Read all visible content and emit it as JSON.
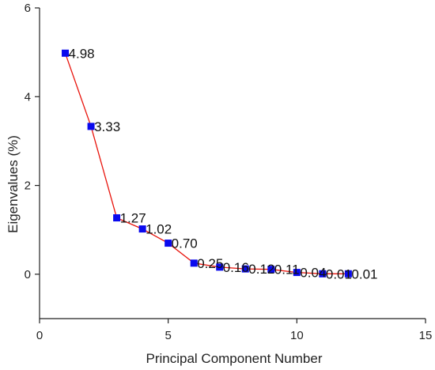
{
  "chart_data": {
    "type": "line",
    "title": "",
    "xlabel": "Principal Component Number",
    "ylabel": "Eigenvalues (%)",
    "xlim": [
      0,
      15
    ],
    "ylim": [
      -1,
      6
    ],
    "x_ticks": [
      0,
      5,
      10,
      15
    ],
    "y_ticks": [
      0,
      2,
      4,
      6
    ],
    "grid": false,
    "legend": "none",
    "colors": {
      "line": "#e8140c",
      "marker": "#0a0aee",
      "axis": "#222222"
    },
    "series": [
      {
        "x": [
          1,
          2,
          3,
          4,
          5,
          6,
          7,
          8,
          9,
          10,
          11,
          12
        ],
        "values": [
          4.98,
          3.33,
          1.27,
          1.02,
          0.7,
          0.25,
          0.16,
          0.12,
          0.11,
          0.04,
          0.01,
          0.01
        ],
        "labels": [
          "4.98",
          "3.33",
          "1.27",
          "1.02",
          "0.70",
          "0.25",
          "0.16",
          "0.12",
          "0.11",
          "0.04",
          "0.01",
          "0.01"
        ]
      }
    ]
  }
}
